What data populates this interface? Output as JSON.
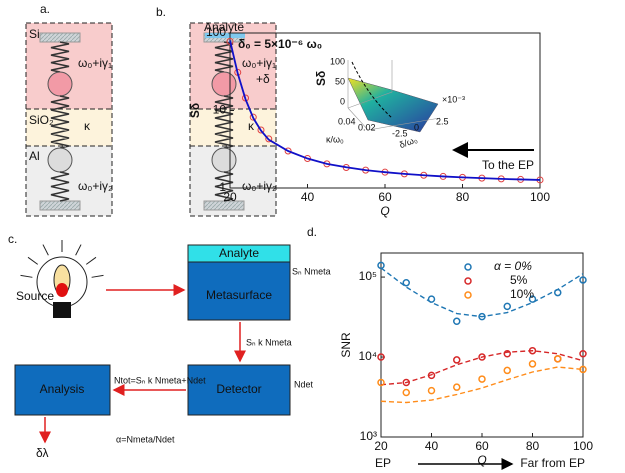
{
  "panel_a": {
    "label": "a.",
    "layers": [
      "Si",
      "SiO₂",
      "Al"
    ],
    "left": {
      "top": "ω₀+iγ₁",
      "coupling": "κ",
      "bottom": "ω₀+iγ₂"
    },
    "right": {
      "analyte": "Analyte",
      "top": "ω₀+iγ₁",
      "shift": "+δ",
      "coupling": "κ",
      "bottom": "ω₀+iγ₂"
    }
  },
  "panel_c": {
    "label": "c.",
    "source": "Source",
    "analyte": "Analyte",
    "metasurface": "Metasurface",
    "meta_signal": "Sₙ Nmeta",
    "transfer": "Sₙ k Nmeta",
    "detector": "Detector",
    "noise": "Ndet",
    "analysis": "Analysis",
    "total": "Ntot=Sₙ k Nmeta+Ndet",
    "ratio": "α=Nmeta/Ndet",
    "output": "δλ"
  },
  "chart_data": [
    {
      "type": "line",
      "panel_label": "b.",
      "xlabel": "Q",
      "ylabel": "Sδ",
      "log_y": true,
      "annotation": "δ₀ = 5×10⁻⁶ ω₀",
      "arrow_label": "To the EP",
      "x": [
        20,
        22,
        24,
        26,
        28,
        30,
        35,
        40,
        45,
        50,
        55,
        60,
        65,
        70,
        75,
        80,
        85,
        90,
        95,
        100
      ],
      "line": {
        "color": "#1010c8",
        "values": [
          80,
          30,
          14,
          8,
          5.5,
          4.2,
          3.0,
          2.4,
          2.05,
          1.85,
          1.7,
          1.6,
          1.52,
          1.46,
          1.41,
          1.37,
          1.34,
          1.31,
          1.29,
          1.27
        ]
      },
      "points": {
        "color": "#e04040",
        "values": [
          78,
          31,
          14.5,
          8.2,
          5.6,
          4.3,
          3.0,
          2.4,
          2.05,
          1.84,
          1.7,
          1.6,
          1.52,
          1.46,
          1.41,
          1.37,
          1.34,
          1.31,
          1.29,
          1.27
        ]
      },
      "xlim": [
        20,
        100
      ],
      "xticks": [
        20,
        40,
        60,
        80,
        100
      ],
      "ylim": [
        1,
        100
      ],
      "yticks": [
        1,
        10,
        100
      ],
      "inset": {
        "zlabel": "Sδ",
        "zticks": [
          100,
          50,
          0
        ],
        "kticks": [
          0.04,
          0.02
        ],
        "klabel": "κ/ω₀",
        "dticks": [
          -2.5,
          0,
          2.5
        ],
        "dlabel": "δ/ω₀",
        "dscale": "×10⁻³"
      }
    },
    {
      "type": "scatter",
      "panel_label": "d.",
      "xlabel": "Q",
      "ylabel": "SNR",
      "log_y": true,
      "left_note": "EP",
      "right_note": "Far from EP",
      "x": [
        20,
        30,
        40,
        50,
        60,
        70,
        80,
        90,
        100
      ],
      "series": [
        {
          "name": "α = 0%",
          "color": "#1f77b4",
          "values": [
            140000,
            85000,
            53000,
            28000,
            32000,
            43000,
            53000,
            64000,
            92000
          ],
          "fit": [
            130000,
            75000,
            48000,
            35000,
            32000,
            36000,
            48000,
            70000,
            110000
          ]
        },
        {
          "name": "5%",
          "color": "#d62728",
          "values": [
            10000,
            4800,
            5900,
            9200,
            10000,
            11000,
            12000,
            9500,
            11000
          ],
          "fit": [
            4500,
            4800,
            6000,
            8000,
            10000,
            11500,
            12000,
            11000,
            9000
          ]
        },
        {
          "name": "10%",
          "color": "#ff8c1a",
          "values": [
            4800,
            3600,
            3800,
            4200,
            5300,
            6800,
            8200,
            9500,
            7000
          ],
          "fit": [
            2800,
            2700,
            2900,
            3400,
            4100,
            5200,
            6500,
            7500,
            7000
          ]
        }
      ],
      "xlim": [
        20,
        100
      ],
      "xticks": [
        20,
        40,
        60,
        80,
        100
      ],
      "ylim": [
        1000,
        200000
      ],
      "yticks": [
        {
          "value": 1000,
          "label": "10³"
        },
        {
          "value": 10000,
          "label": "10⁴"
        },
        {
          "value": 100000,
          "label": "10⁵"
        }
      ]
    }
  ]
}
